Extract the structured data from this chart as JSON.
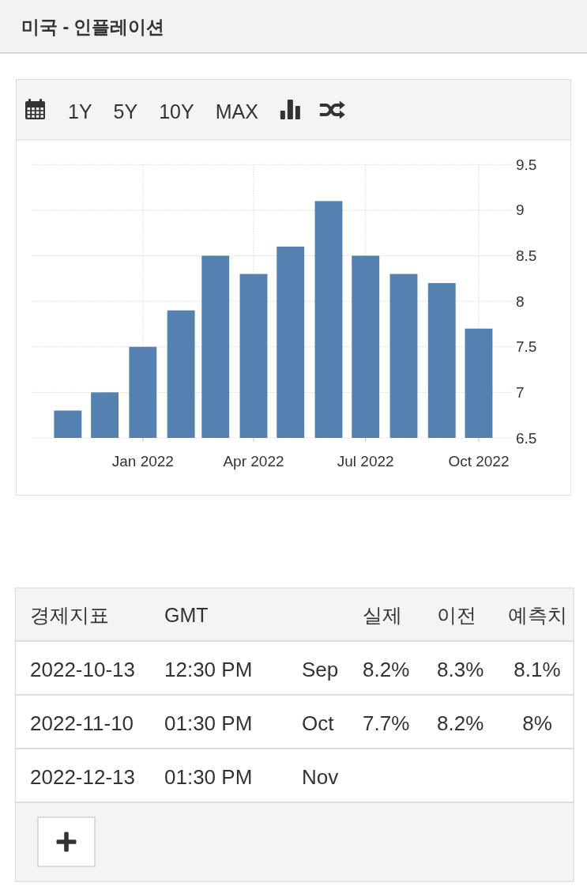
{
  "chart_data": [
    {
      "type": "bar",
      "title": "미국 - 인플레이션",
      "annotations": [
        "1Y",
        "5Y",
        "10Y",
        "MAX"
      ],
      "x": [
        "2021-11",
        "2021-12",
        "2022-01",
        "2022-02",
        "2022-03",
        "2022-04",
        "2022-05",
        "2022-06",
        "2022-07",
        "2022-08",
        "2022-09",
        "2022-10"
      ],
      "values": [
        6.8,
        7.0,
        7.5,
        7.9,
        8.5,
        8.3,
        8.6,
        9.1,
        8.5,
        8.3,
        8.2,
        7.7
      ],
      "color": "#5581b0",
      "xlim": [
        "2021-10-03",
        "2022-10-28"
      ],
      "xticks": [
        {
          "value": "2022-01",
          "label": "Jan 2022"
        },
        {
          "value": "2022-04",
          "label": "Apr 2022"
        },
        {
          "value": "2022-07",
          "label": "Jul 2022"
        },
        {
          "value": "2022-10",
          "label": "Oct 2022"
        }
      ],
      "ylim": [
        6.5,
        9.5
      ],
      "yticks": [
        6.5,
        7,
        7.5,
        8,
        8.5,
        9,
        9.5
      ],
      "grid": true
    },
    {
      "type": "other",
      "categories": [
        "경제지표",
        "GMT",
        null,
        "실제",
        "이전",
        "예측치"
      ],
      "cell_labels": [
        [
          "2022-10-13",
          "12:30 PM",
          "Sep",
          "8.2%",
          "8.3%",
          "8.1%"
        ],
        [
          "2022-11-10",
          "01:30 PM",
          "Oct",
          "7.7%",
          "8.2%",
          "8%"
        ],
        [
          "2022-12-13",
          "01:30 PM",
          "Nov",
          null,
          null,
          null
        ]
      ]
    }
  ]
}
